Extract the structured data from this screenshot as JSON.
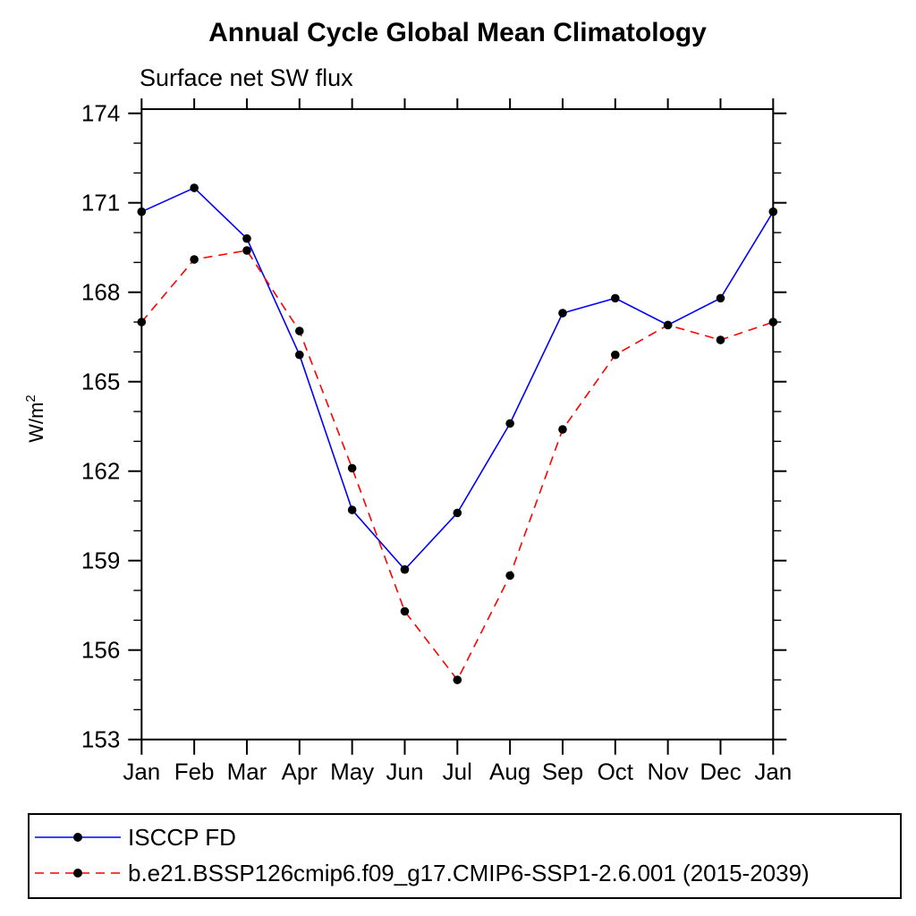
{
  "page_title": "Annual Cycle Global Mean Climatology",
  "chart_data": {
    "type": "line",
    "title": "Annual Cycle Global Mean Climatology",
    "subtitle": "Surface net SW flux",
    "ylabel": "W/m",
    "ylabel_superscript": "2",
    "xlabel": "",
    "categories": [
      "Jan",
      "Feb",
      "Mar",
      "Apr",
      "May",
      "Jun",
      "Jul",
      "Aug",
      "Sep",
      "Oct",
      "Nov",
      "Dec",
      "Jan"
    ],
    "ylim": [
      153,
      174
    ],
    "ytick_major": [
      153,
      156,
      159,
      162,
      165,
      168,
      171,
      174
    ],
    "ytick_minor_step": 1,
    "grid": false,
    "tick_direction": "out",
    "legend_position": "bottom-left-box",
    "axis_color": "#000000",
    "series": [
      {
        "name": "ISCCP FD",
        "color": "#0000ff",
        "line_style": "solid",
        "dash": "none",
        "marker": "filled-circle",
        "marker_color": "#000000",
        "values": [
          170.7,
          171.5,
          169.8,
          165.9,
          160.7,
          158.7,
          160.6,
          163.6,
          167.3,
          167.8,
          166.9,
          167.8,
          170.7
        ]
      },
      {
        "name": "b.e21.BSSP126cmip6.f09_g17.CMIP6-SSP1-2.6.001 (2015-2039)",
        "color": "#ff0000",
        "line_style": "dashed",
        "dash": "10 7",
        "marker": "filled-circle",
        "marker_color": "#000000",
        "values": [
          167.0,
          169.1,
          169.4,
          166.7,
          162.1,
          157.3,
          155.0,
          158.5,
          163.4,
          165.9,
          166.9,
          166.4,
          167.0
        ]
      }
    ]
  }
}
